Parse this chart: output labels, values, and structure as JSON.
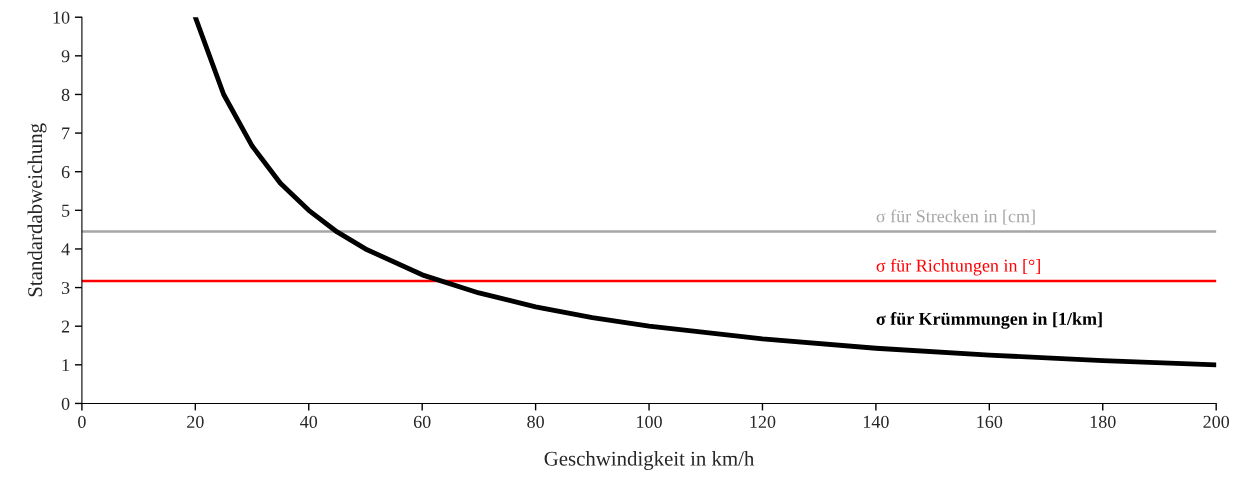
{
  "chart_data": {
    "type": "line",
    "xlabel": "Geschwindigkeit in km/h",
    "ylabel": "Standardabweichung",
    "xlim": [
      0,
      200
    ],
    "xticks": [
      0,
      20,
      40,
      60,
      80,
      100,
      120,
      140,
      160,
      180,
      200
    ],
    "ylim": [
      0,
      10
    ],
    "yticks": [
      0,
      1,
      2,
      3,
      4,
      5,
      6,
      7,
      8,
      9,
      10
    ],
    "grid": false,
    "legend": false,
    "marker": "none",
    "line_style": "solid",
    "series": [
      {
        "name": "σ für Krümmungen in [1/km]",
        "color": "#000000",
        "x": [
          20,
          25,
          30,
          35,
          40,
          45,
          50,
          60,
          70,
          80,
          90,
          100,
          120,
          140,
          160,
          180,
          200
        ],
        "values": [
          10,
          8,
          6.67,
          5.7,
          5,
          4.44,
          4,
          3.33,
          2.86,
          2.5,
          2.22,
          2,
          1.67,
          1.43,
          1.25,
          1.11,
          1
        ]
      }
    ],
    "ref_lines": [
      {
        "axis": "y",
        "value": 4.45,
        "label": "σ für Strecken in [cm]",
        "color": "#a6a6a6",
        "line_style": "solid"
      },
      {
        "axis": "y",
        "value": 3.17,
        "label": "σ für Richtungen in [°]",
        "color": "#ff0000",
        "line_style": "solid"
      }
    ]
  }
}
